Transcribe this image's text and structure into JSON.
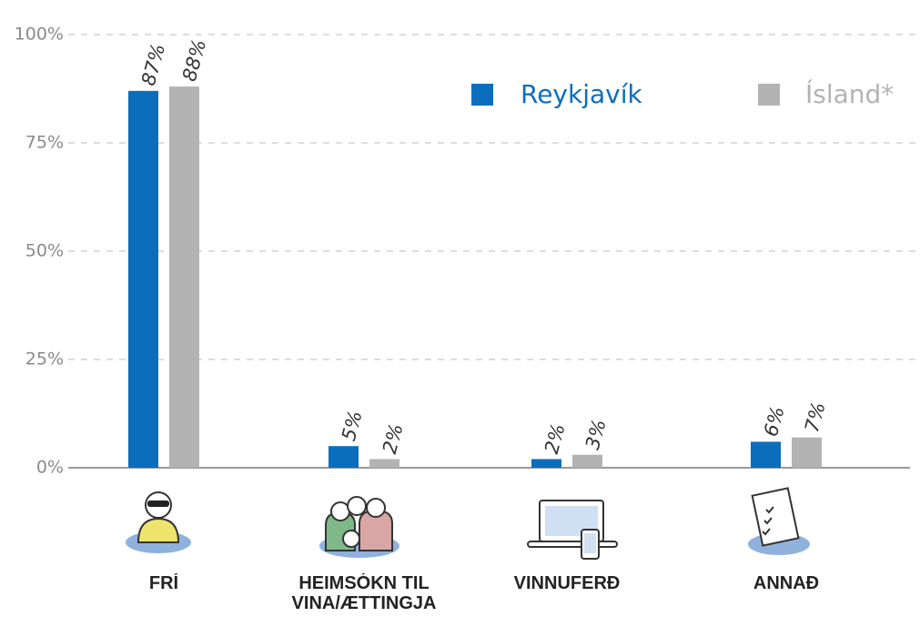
{
  "chart_data": {
    "type": "bar",
    "categories": [
      "FRÍ",
      "HEIMSÓKN TIL VINA/ÆTTINGJA",
      "VINNUFERÐ",
      "ANNAÐ"
    ],
    "series": [
      {
        "name": "Reykjavík",
        "color": "#0a6ebd",
        "values": [
          87,
          5,
          2,
          6
        ],
        "value_labels": [
          "87%",
          "5%",
          "2%",
          "6%"
        ]
      },
      {
        "name": "Ísland*",
        "color": "#b3b3b3",
        "values": [
          88,
          2,
          3,
          7
        ],
        "value_labels": [
          "88%",
          "2%",
          "3%",
          "7%"
        ]
      }
    ],
    "ylim": [
      0,
      100
    ],
    "yticks": [
      {
        "value": 0,
        "label": "0%"
      },
      {
        "value": 25,
        "label": "25%"
      },
      {
        "value": 50,
        "label": "50%"
      },
      {
        "value": 75,
        "label": "75%"
      },
      {
        "value": 100,
        "label": "100%"
      }
    ],
    "grid": true
  }
}
